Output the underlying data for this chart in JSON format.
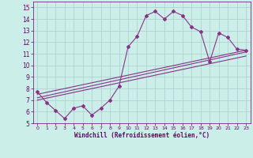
{
  "xlabel": "Windchill (Refroidissement éolien,°C)",
  "xlim": [
    -0.5,
    23.5
  ],
  "ylim": [
    5,
    15.5
  ],
  "xticks": [
    0,
    1,
    2,
    3,
    4,
    5,
    6,
    7,
    8,
    9,
    10,
    11,
    12,
    13,
    14,
    15,
    16,
    17,
    18,
    19,
    20,
    21,
    22,
    23
  ],
  "yticks": [
    5,
    6,
    7,
    8,
    9,
    10,
    11,
    12,
    13,
    14,
    15
  ],
  "bg_color": "#cceee8",
  "grid_color": "#aacccc",
  "line_color": "#883388",
  "line1_x": [
    0,
    1,
    2,
    3,
    4,
    5,
    6,
    7,
    8,
    9,
    10,
    11,
    12,
    13,
    14,
    15,
    16,
    17,
    18,
    19,
    20,
    21,
    22,
    23
  ],
  "line1_y": [
    7.7,
    6.8,
    6.1,
    5.4,
    6.3,
    6.5,
    5.7,
    6.3,
    7.0,
    8.2,
    11.6,
    12.5,
    14.3,
    14.65,
    14.0,
    14.65,
    14.3,
    13.3,
    12.9,
    10.3,
    12.8,
    12.4,
    11.4,
    11.3
  ],
  "line2_x": [
    0,
    23
  ],
  "line2_y": [
    7.5,
    11.3
  ],
  "line3_x": [
    0,
    23
  ],
  "line3_y": [
    7.0,
    10.8
  ],
  "line4_x": [
    0,
    23
  ],
  "line4_y": [
    7.2,
    11.15
  ]
}
